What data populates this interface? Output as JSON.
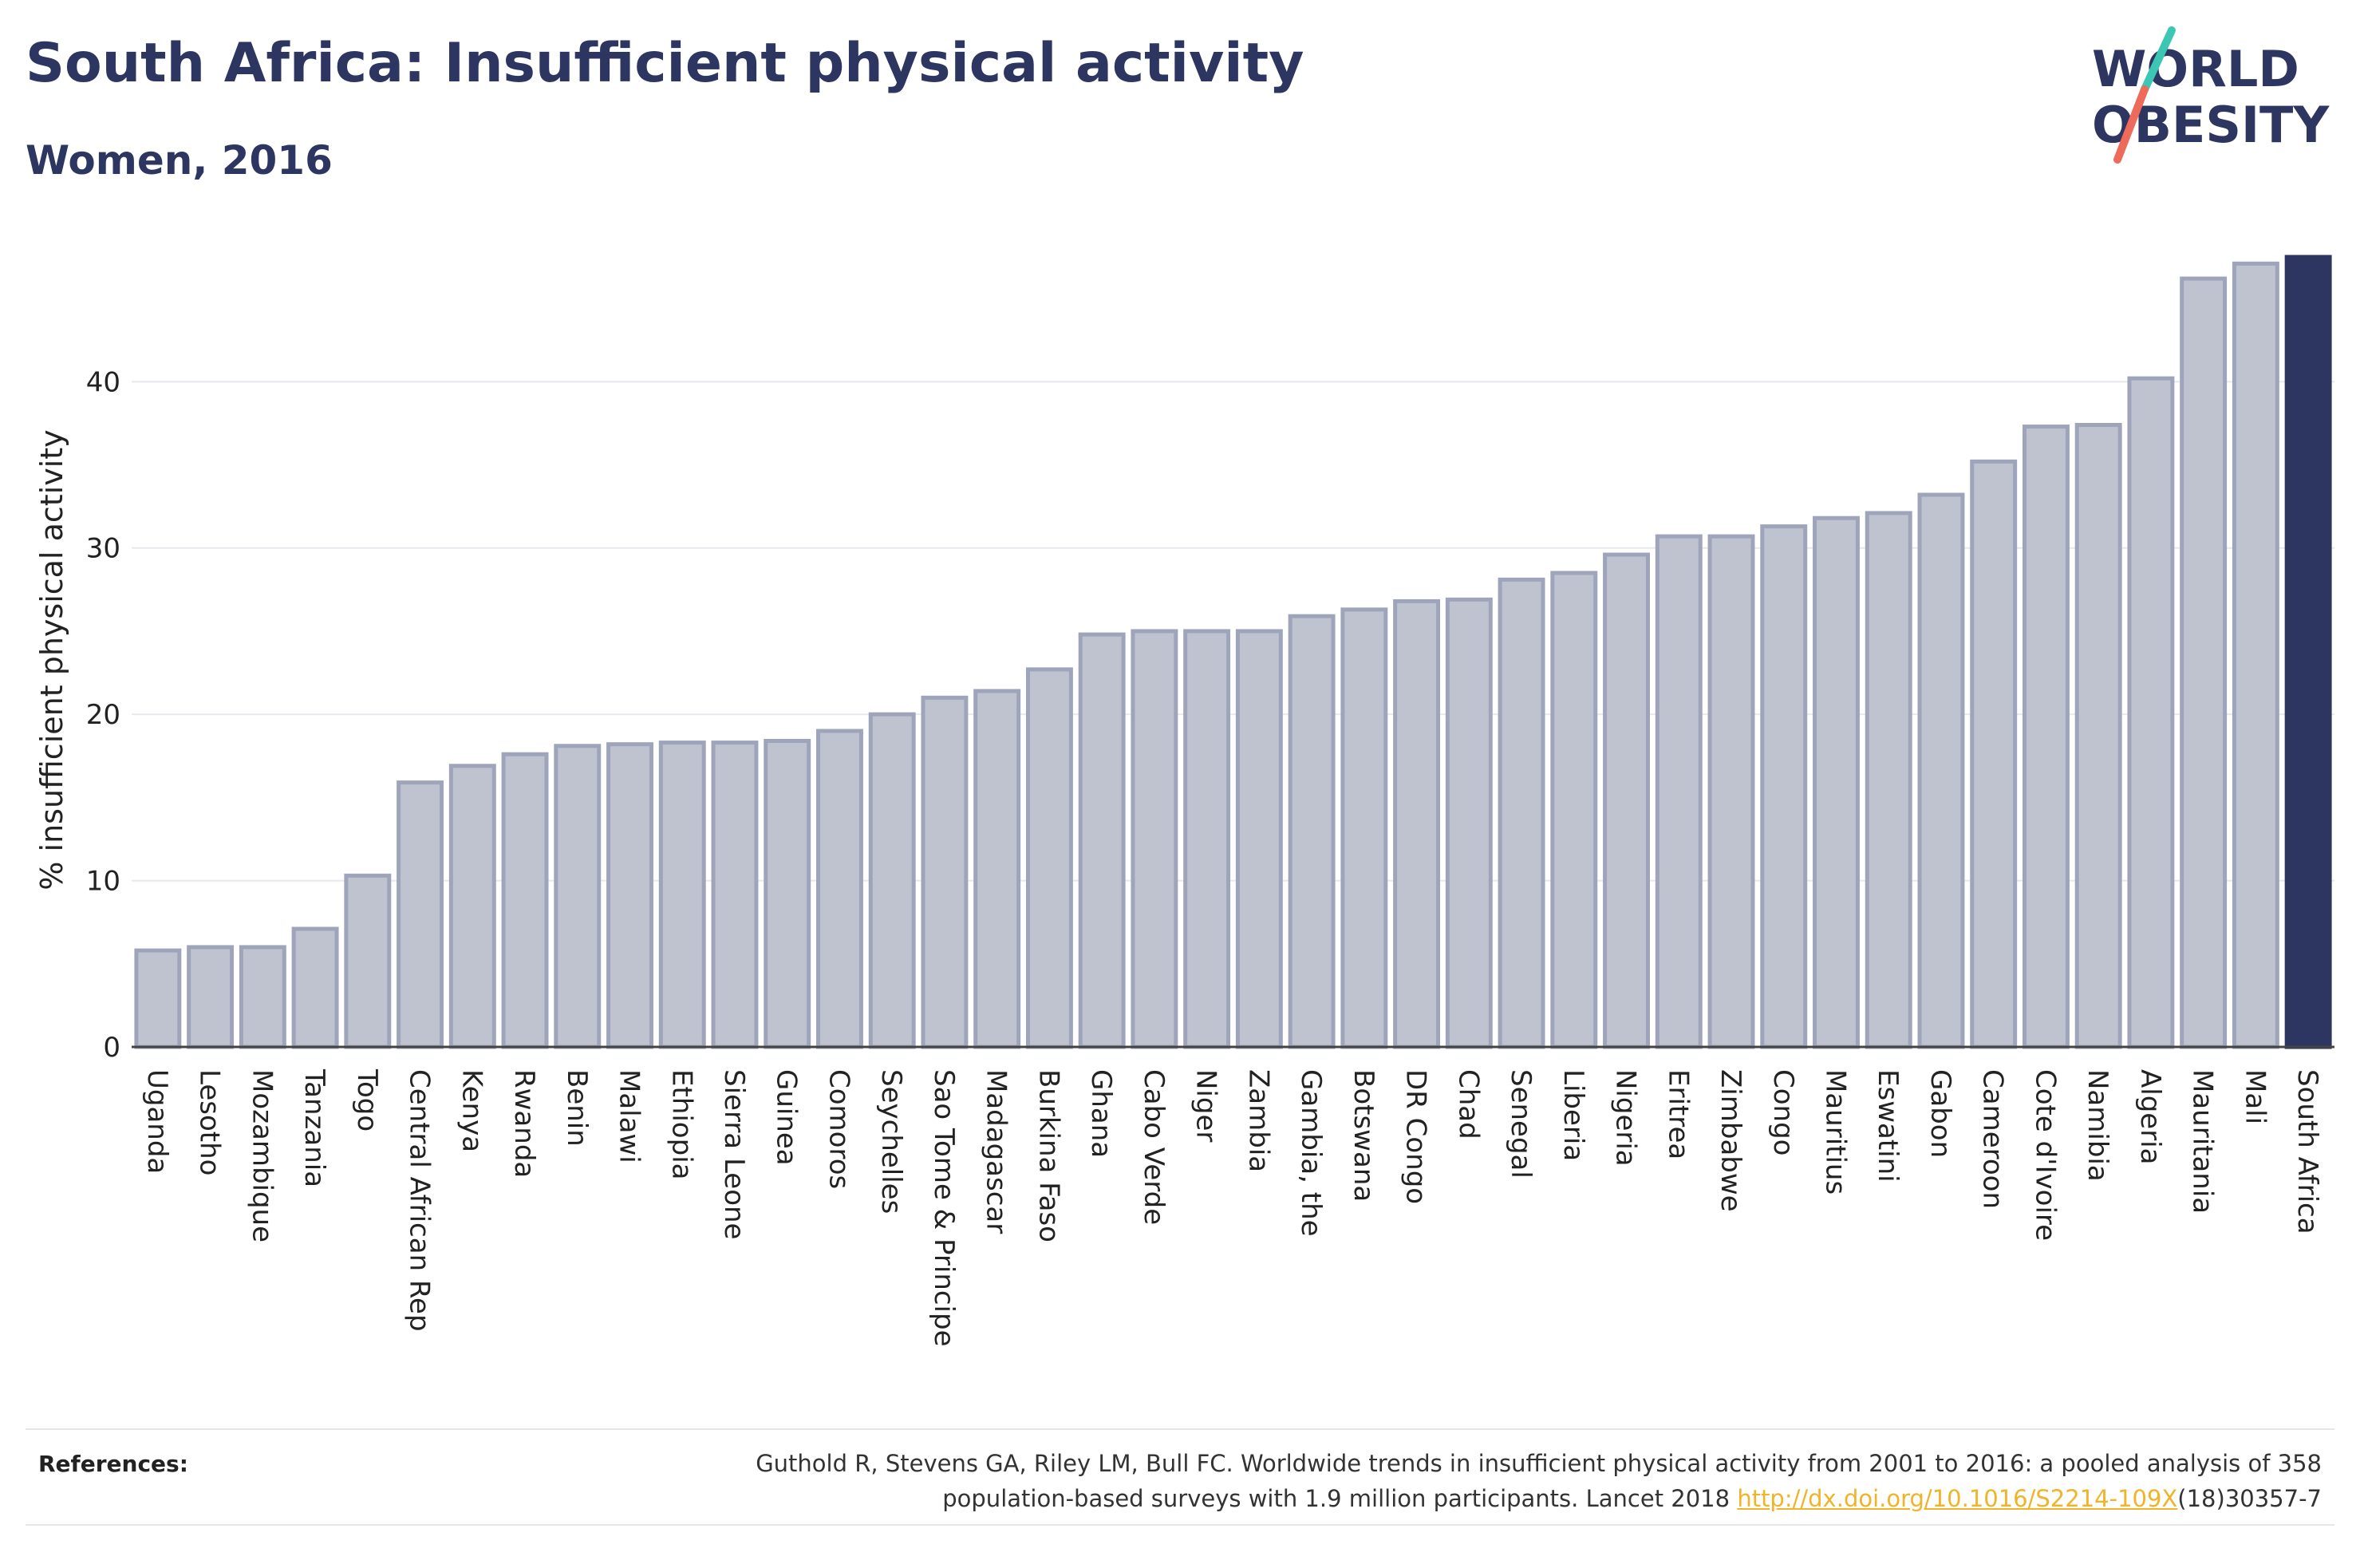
{
  "header": {
    "title": "South Africa: Insufficient physical activity",
    "subtitle": "Women, 2016"
  },
  "logo": {
    "line1": "WORLD",
    "line2": "OBESITY"
  },
  "chart_data": {
    "type": "bar",
    "title": "South Africa: Insufficient physical activity",
    "subtitle": "Women, 2016",
    "xlabel": "",
    "ylabel": "% insufficient physical activity",
    "ylim": [
      0,
      47.5
    ],
    "yticks": [
      0,
      10,
      20,
      30,
      40
    ],
    "grid": true,
    "highlight": "South Africa",
    "colors": {
      "bar": "#bfc3d0",
      "bar_border": "#9ea4ba",
      "highlight": "#2d3561",
      "grid": "#e8e8ee"
    },
    "categories": [
      "Uganda",
      "Lesotho",
      "Mozambique",
      "Tanzania",
      "Togo",
      "Central African Rep",
      "Kenya",
      "Rwanda",
      "Benin",
      "Malawi",
      "Ethiopia",
      "Sierra Leone",
      "Guinea",
      "Comoros",
      "Seychelles",
      "Sao Tome & Principe",
      "Madagascar",
      "Burkina Faso",
      "Ghana",
      "Cabo Verde",
      "Niger",
      "Zambia",
      "Gambia, the",
      "Botswana",
      "DR Congo",
      "Chad",
      "Senegal",
      "Liberia",
      "Nigeria",
      "Eritrea",
      "Zimbabwe",
      "Congo",
      "Mauritius",
      "Eswatini",
      "Gabon",
      "Cameroon",
      "Cote d'Ivoire",
      "Namibia",
      "Algeria",
      "Mauritania",
      "Mali",
      "South Africa"
    ],
    "values": [
      5.8,
      6.0,
      6.0,
      7.1,
      10.3,
      15.9,
      16.9,
      17.6,
      18.1,
      18.2,
      18.3,
      18.3,
      18.4,
      19.0,
      20.0,
      21.0,
      21.4,
      22.7,
      24.8,
      25.0,
      25.0,
      25.0,
      25.9,
      26.3,
      26.8,
      26.9,
      28.1,
      28.5,
      29.6,
      30.7,
      30.7,
      31.3,
      31.8,
      32.1,
      33.2,
      35.2,
      37.3,
      37.4,
      40.2,
      46.2,
      47.1,
      47.5
    ]
  },
  "references": {
    "label": "References:",
    "text_line1": "Guthold R, Stevens GA, Riley LM, Bull FC. Worldwide trends in insufficient physical activity from 2001 to 2016: a pooled analysis of 358",
    "text_line2_prefix": "population-based surveys with 1.9 million participants. Lancet 2018 ",
    "link": "http://dx.doi.org/10.1016/S2214-109X",
    "text_line2_suffix": "(18)30357-7"
  }
}
